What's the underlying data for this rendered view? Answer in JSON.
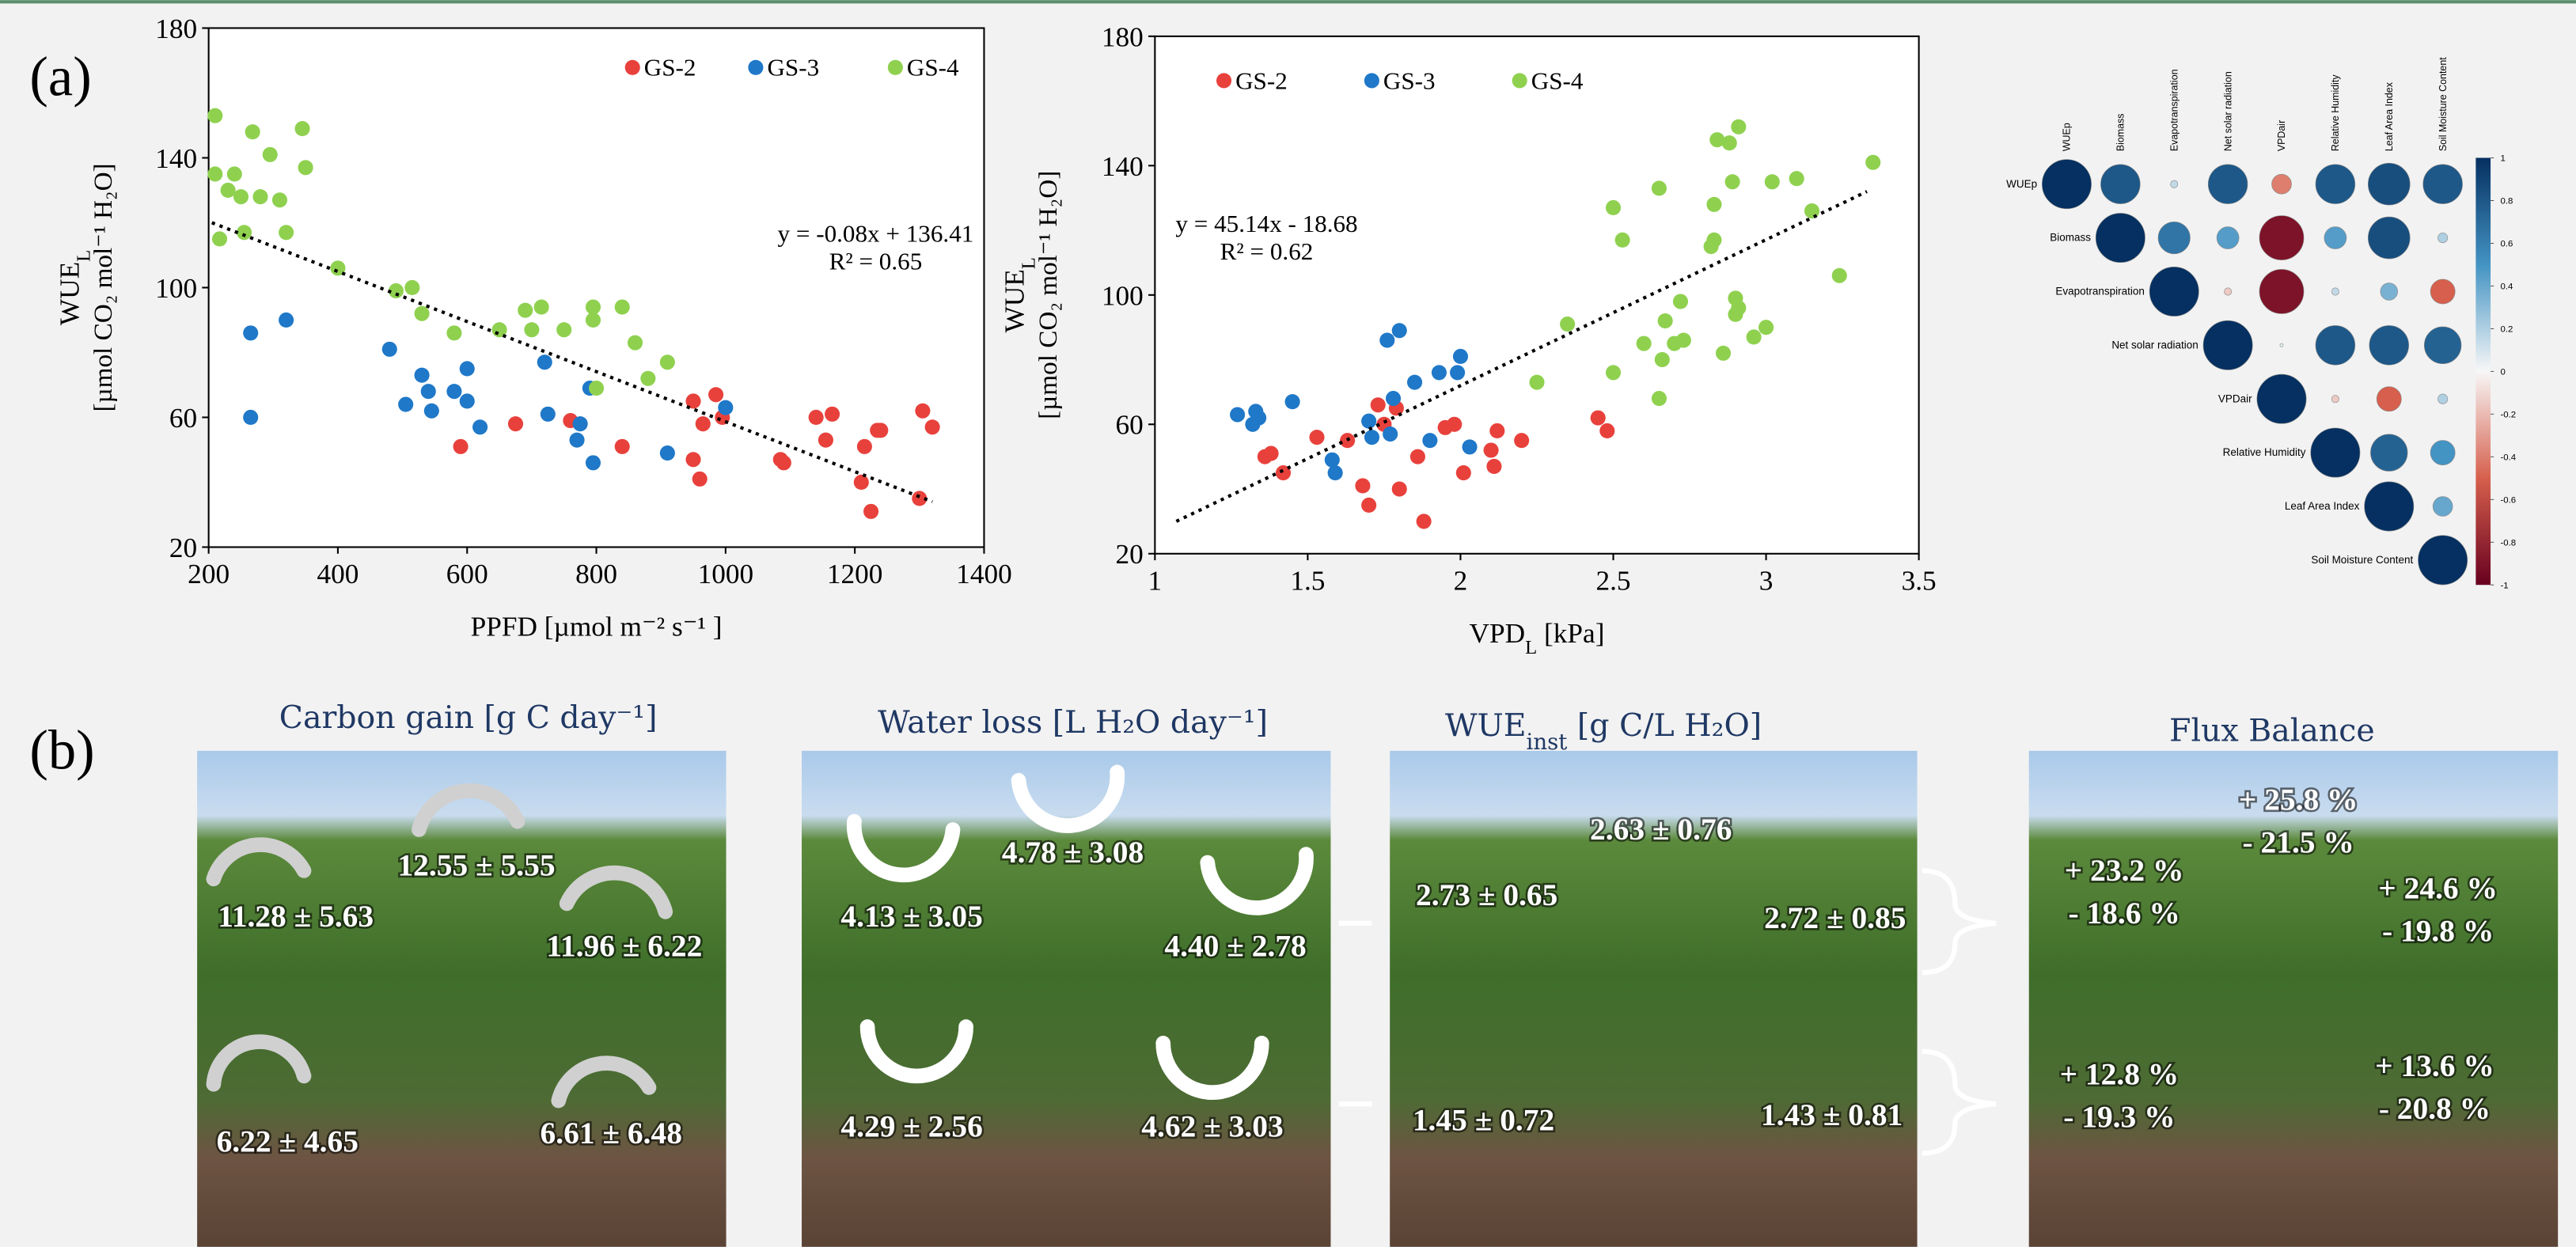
{
  "panel_labels": [
    "(a)",
    "(b)"
  ],
  "chart_data": [
    {
      "type": "scatter",
      "x_label": {
        "text": "PPFD [µmol m⁻² s⁻¹ ]"
      },
      "y_label": {
        "text": "WUE",
        "sub": "L",
        "line2": "[µmol CO₂ mol⁻¹ H₂O]"
      },
      "xlim": [
        200,
        1400
      ],
      "xticks": [
        200,
        400,
        600,
        800,
        1000,
        1200,
        1400
      ],
      "ylim": [
        20,
        180
      ],
      "yticks": [
        20,
        60,
        100,
        140,
        180
      ],
      "equation": "y = -0.08x + 136.41",
      "r_squared": "R² = 0.65",
      "trendline": {
        "x": [
          205,
          1320
        ],
        "y": [
          120,
          34
        ]
      },
      "series": [
        {
          "name": "GS-2",
          "color": "#e8413c",
          "x": [
            590,
            675,
            760,
            840,
            950,
            950,
            960,
            965,
            985,
            995,
            1085,
            1090,
            1140,
            1155,
            1165,
            1210,
            1215,
            1225,
            1235,
            1240,
            1300,
            1305,
            1320
          ],
          "values": [
            51,
            58,
            59,
            51,
            65,
            47,
            41,
            58,
            67,
            60,
            47,
            46,
            60,
            53,
            61,
            40,
            51,
            31,
            56,
            56,
            35,
            62,
            57
          ]
        },
        {
          "name": "GS-3",
          "color": "#1f78c8",
          "x": [
            265,
            265,
            320,
            480,
            505,
            530,
            540,
            545,
            580,
            600,
            600,
            620,
            720,
            725,
            770,
            775,
            795,
            790,
            910,
            1000
          ],
          "values": [
            86,
            60,
            90,
            81,
            64,
            73,
            68,
            62,
            68,
            75,
            65,
            57,
            77,
            61,
            53,
            58,
            46,
            69,
            49,
            63
          ]
        },
        {
          "name": "GS-4",
          "color": "#8fd14f",
          "x": [
            210,
            210,
            217,
            230,
            240,
            250,
            255,
            268,
            280,
            295,
            310,
            320,
            345,
            350,
            400,
            490,
            515,
            530,
            580,
            650,
            690,
            700,
            715,
            750,
            795,
            795,
            800,
            840,
            860,
            880,
            910
          ],
          "values": [
            153,
            135,
            115,
            130,
            135,
            128,
            117,
            148,
            128,
            141,
            127,
            117,
            149,
            137,
            106,
            99,
            100,
            92,
            86,
            87,
            93,
            87,
            94,
            87,
            94,
            90,
            69,
            94,
            83,
            72,
            77
          ]
        }
      ]
    },
    {
      "type": "scatter",
      "x_label": {
        "text": "VPD",
        "sub": "L",
        "tail": " [kPa]"
      },
      "y_label": {
        "text": "WUE",
        "sub": "L",
        "line2": "[µmol CO₂ mol⁻¹ H₂O]"
      },
      "xlim": [
        1,
        3.5
      ],
      "xticks": [
        1,
        1.5,
        2,
        2.5,
        3,
        3.5
      ],
      "ylim": [
        20,
        180
      ],
      "yticks": [
        20,
        60,
        100,
        140,
        180
      ],
      "equation": "y = 45.14x - 18.68",
      "r_squared": "R² = 0.62",
      "trendline": {
        "x": [
          1.07,
          3.33
        ],
        "y": [
          30,
          132
        ]
      },
      "series": [
        {
          "name": "GS-2",
          "color": "#e8413c",
          "x": [
            1.36,
            1.38,
            1.42,
            1.53,
            1.63,
            1.68,
            1.7,
            1.73,
            1.75,
            1.79,
            1.8,
            1.86,
            1.88,
            1.95,
            1.98,
            2.01,
            2.1,
            2.11,
            2.12,
            2.2,
            2.45,
            2.48
          ],
          "values": [
            50,
            51,
            45,
            56,
            55,
            41,
            35,
            66,
            60,
            65,
            40,
            50,
            30,
            59,
            60,
            45,
            52,
            47,
            58,
            55,
            62,
            58
          ]
        },
        {
          "name": "GS-3",
          "color": "#1f78c8",
          "x": [
            1.27,
            1.32,
            1.33,
            1.34,
            1.45,
            1.58,
            1.59,
            1.7,
            1.71,
            1.76,
            1.77,
            1.78,
            1.8,
            1.85,
            1.9,
            1.93,
            1.99,
            2.0,
            2.03
          ],
          "values": [
            63,
            60,
            64,
            62,
            67,
            49,
            45,
            61,
            56,
            86,
            57,
            68,
            89,
            73,
            55,
            76,
            76,
            81,
            53
          ]
        },
        {
          "name": "GS-4",
          "color": "#8fd14f",
          "x": [
            2.25,
            2.35,
            2.5,
            2.5,
            2.53,
            2.6,
            2.65,
            2.65,
            2.66,
            2.67,
            2.7,
            2.72,
            2.73,
            2.82,
            2.83,
            2.83,
            2.84,
            2.86,
            2.88,
            2.89,
            2.9,
            2.9,
            2.91,
            2.91,
            2.96,
            3.0,
            3.02,
            3.1,
            3.15,
            3.24,
            3.35
          ],
          "values": [
            73,
            91,
            127,
            76,
            117,
            85,
            68,
            133,
            80,
            92,
            85,
            98,
            86,
            115,
            117,
            128,
            148,
            82,
            147,
            135,
            99,
            94,
            96,
            152,
            87,
            90,
            135,
            136,
            126,
            106,
            141
          ]
        }
      ]
    },
    {
      "type": "correlation",
      "variables": [
        "WUEp",
        "Biomass",
        "Evapotranspiration",
        "Net solar radiation",
        "VPDair",
        "Relative Humidity",
        "Leaf Area Index",
        "Soil Moisture Content"
      ],
      "matrix": [
        [
          1,
          0.8,
          0.15,
          0.8,
          -0.4,
          0.8,
          0.85,
          0.8
        ],
        [
          null,
          1,
          0.65,
          0.45,
          -0.9,
          0.45,
          0.85,
          0.2
        ],
        [
          null,
          null,
          1,
          -0.15,
          -0.9,
          0.15,
          0.35,
          -0.5
        ],
        [
          null,
          null,
          null,
          1,
          0.05,
          0.8,
          0.8,
          0.75
        ],
        [
          null,
          null,
          null,
          null,
          1,
          -0.15,
          -0.5,
          0.2
        ],
        [
          null,
          null,
          null,
          null,
          null,
          1,
          0.75,
          0.5
        ],
        [
          null,
          null,
          null,
          null,
          null,
          null,
          1,
          0.4
        ],
        [
          null,
          null,
          null,
          null,
          null,
          null,
          null,
          1
        ]
      ],
      "colors": [
        "#67001f",
        "#d6604d",
        "#f7f7f7",
        "#4393c3",
        "#053061"
      ],
      "clim": [
        -1,
        1
      ],
      "cticks": [
        1,
        0.8,
        0.6,
        0.4,
        0.2,
        0,
        -0.2,
        -0.4,
        -0.6,
        -0.8,
        -1
      ]
    }
  ],
  "panel_b": [
    {
      "title": {
        "text": "Carbon gain [g C day⁻¹]"
      },
      "labels": [
        [
          "12.55 ± 5.55"
        ],
        [
          "11.28 ± 5.63"
        ],
        [
          "11.96 ± 6.22"
        ],
        [
          "6.22 ± 4.65"
        ],
        [
          "6.61 ± 6.48"
        ]
      ]
    },
    {
      "title": {
        "text": "Water loss [L H₂O day⁻¹]"
      },
      "labels": [
        [
          "4.78 ± 3.08"
        ],
        [
          "4.13 ± 3.05"
        ],
        [
          "4.40 ± 2.78"
        ],
        [
          "4.29 ± 2.56"
        ],
        [
          "4.62 ± 3.03"
        ]
      ]
    },
    {
      "title": {
        "text": "WUE",
        "sub": "inst",
        "tail": " [g C/L H₂O]"
      },
      "labels": [
        [
          "2.63 ± 0.76"
        ],
        [
          "2.73 ± 0.65"
        ],
        [
          "2.72 ± 0.85"
        ],
        [
          "1.45 ± 0.72"
        ],
        [
          "1.43 ± 0.81"
        ]
      ]
    },
    {
      "title": {
        "text": "Flux Balance"
      },
      "labels": [
        [
          "+ 25.8 %",
          "- 21.5 %"
        ],
        [
          "+ 23.2 %",
          "- 18.6 %"
        ],
        [
          "+ 24.6 %",
          "- 19.8 %"
        ],
        [
          "+ 12.8 %",
          "- 19.3 %"
        ],
        [
          "+ 13.6 %",
          "- 20.8 %"
        ]
      ]
    }
  ]
}
